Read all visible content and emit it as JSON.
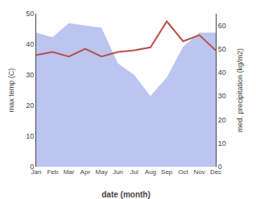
{
  "chart_data": {
    "type": "line",
    "categories": [
      "Jan",
      "Feb",
      "Mar",
      "Apr",
      "May",
      "Jun",
      "Jul",
      "Aug",
      "Sep",
      "Oct",
      "Nov",
      "Dec"
    ],
    "xlabel": "date (month)",
    "ylabel": "max temp (C)",
    "y2label": "med. precipitation (kg/m2)",
    "ylim": [
      0,
      50
    ],
    "yticks": [
      0,
      10,
      20,
      30,
      40,
      50
    ],
    "y2lim": [
      0,
      65
    ],
    "y2ticks": [
      0,
      10,
      20,
      30,
      40,
      50,
      60
    ],
    "grid": false,
    "series": [
      {
        "type": "area",
        "axis": "y2",
        "color": "#bbc5f0",
        "values": [
          57,
          55,
          61,
          60,
          59,
          44,
          39,
          30,
          38,
          51,
          57,
          57
        ]
      },
      {
        "type": "line",
        "color": "#b8504a",
        "values": [
          36.5,
          37.5,
          36.0,
          38.5,
          36.0,
          37.5,
          38.0,
          39.0,
          47.5,
          41.0,
          43.0,
          38.0
        ]
      }
    ]
  }
}
